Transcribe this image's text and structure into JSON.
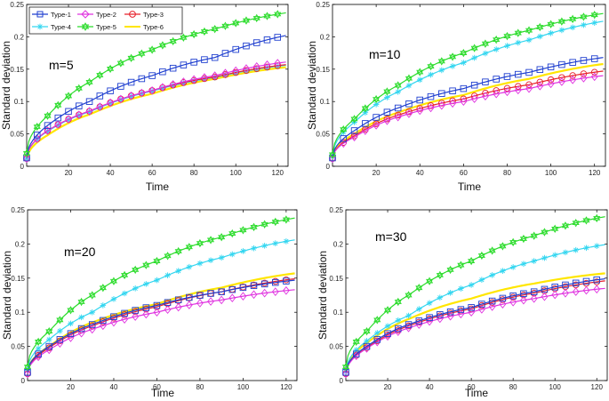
{
  "figure": {
    "ylabel": "Standard deviation",
    "xlabel": "Time"
  },
  "legend": {
    "entries": [
      {
        "name": "Type-1",
        "color": "#1f3fcf",
        "marker": "square"
      },
      {
        "name": "Type-2",
        "color": "#e033e0",
        "marker": "diamond"
      },
      {
        "name": "Type-3",
        "color": "#e8202a",
        "marker": "circle"
      },
      {
        "name": "Type-4",
        "color": "#33d6f0",
        "marker": "star"
      },
      {
        "name": "Type-5",
        "color": "#2bdc2b",
        "marker": "hexagram"
      },
      {
        "name": "Type-6",
        "color": "#ffe600",
        "marker": "none"
      }
    ]
  },
  "chart_data": [
    {
      "type": "line",
      "annotation": "m=5",
      "xlabel": "Time",
      "ylabel": "Standard deviation",
      "xlim": [
        0,
        125
      ],
      "ylim": [
        0,
        0.25
      ],
      "xticks": [
        "20",
        "40",
        "60",
        "80",
        "100",
        "120"
      ],
      "yticks": [
        "0",
        "0.05",
        "0.1",
        "0.15",
        "0.2",
        "0.25"
      ],
      "series": [
        {
          "name": "Type-1",
          "values_at_x": [
            [
              0,
              0.013
            ],
            [
              10,
              0.063
            ],
            [
              30,
              0.1
            ],
            [
              60,
              0.14
            ],
            [
              90,
              0.168
            ],
            [
              124,
              0.202
            ]
          ]
        },
        {
          "name": "Type-2",
          "values_at_x": [
            [
              0,
              0.012
            ],
            [
              10,
              0.055
            ],
            [
              30,
              0.085
            ],
            [
              60,
              0.117
            ],
            [
              90,
              0.14
            ],
            [
              124,
              0.161
            ]
          ]
        },
        {
          "name": "Type-3",
          "values_at_x": [
            [
              0,
              0.012
            ],
            [
              10,
              0.055
            ],
            [
              30,
              0.085
            ],
            [
              60,
              0.117
            ],
            [
              90,
              0.138
            ],
            [
              124,
              0.157
            ]
          ]
        },
        {
          "name": "Type-4",
          "values_at_x": [
            [
              0,
              0.012
            ],
            [
              10,
              0.054
            ],
            [
              30,
              0.084
            ],
            [
              60,
              0.116
            ],
            [
              90,
              0.137
            ],
            [
              124,
              0.156
            ]
          ]
        },
        {
          "name": "Type-5",
          "values_at_x": [
            [
              0,
              0.02
            ],
            [
              10,
              0.078
            ],
            [
              30,
              0.13
            ],
            [
              60,
              0.18
            ],
            [
              90,
              0.212
            ],
            [
              124,
              0.237
            ]
          ]
        },
        {
          "name": "Type-6",
          "values_at_x": [
            [
              0,
              0.01
            ],
            [
              10,
              0.048
            ],
            [
              30,
              0.08
            ],
            [
              60,
              0.112
            ],
            [
              90,
              0.135
            ],
            [
              124,
              0.153
            ]
          ]
        }
      ]
    },
    {
      "type": "line",
      "annotation": "m=10",
      "xlabel": "Time",
      "ylabel": "Standard deviation",
      "xlim": [
        0,
        125
      ],
      "ylim": [
        0,
        0.25
      ],
      "xticks": [
        "20",
        "40",
        "60",
        "80",
        "100",
        "120"
      ],
      "yticks": [
        "0",
        "0.05",
        "0.1",
        "0.15",
        "0.2",
        "0.25"
      ],
      "series": [
        {
          "name": "Type-1",
          "values_at_x": [
            [
              0,
              0.013
            ],
            [
              10,
              0.055
            ],
            [
              30,
              0.09
            ],
            [
              60,
              0.12
            ],
            [
              90,
              0.145
            ],
            [
              124,
              0.168
            ]
          ]
        },
        {
          "name": "Type-2",
          "values_at_x": [
            [
              0,
              0.012
            ],
            [
              10,
              0.045
            ],
            [
              30,
              0.076
            ],
            [
              60,
              0.1
            ],
            [
              90,
              0.12
            ],
            [
              124,
              0.14
            ]
          ]
        },
        {
          "name": "Type-3",
          "values_at_x": [
            [
              0,
              0.012
            ],
            [
              10,
              0.047
            ],
            [
              30,
              0.079
            ],
            [
              60,
              0.104
            ],
            [
              90,
              0.126
            ],
            [
              124,
              0.147
            ]
          ]
        },
        {
          "name": "Type-4",
          "values_at_x": [
            [
              0,
              0.015
            ],
            [
              10,
              0.068
            ],
            [
              30,
              0.115
            ],
            [
              60,
              0.16
            ],
            [
              90,
              0.195
            ],
            [
              124,
              0.224
            ]
          ]
        },
        {
          "name": "Type-5",
          "values_at_x": [
            [
              0,
              0.018
            ],
            [
              10,
              0.073
            ],
            [
              30,
              0.125
            ],
            [
              60,
              0.175
            ],
            [
              90,
              0.21
            ],
            [
              124,
              0.236
            ]
          ]
        },
        {
          "name": "Type-6",
          "values_at_x": [
            [
              0,
              0.012
            ],
            [
              10,
              0.05
            ],
            [
              30,
              0.083
            ],
            [
              60,
              0.11
            ],
            [
              90,
              0.135
            ],
            [
              124,
              0.158
            ]
          ]
        }
      ]
    },
    {
      "type": "line",
      "annotation": "m=20",
      "xlabel": "Time",
      "ylabel": "Standard deviation",
      "xlim": [
        0,
        125
      ],
      "ylim": [
        0,
        0.25
      ],
      "xticks": [
        "20",
        "40",
        "60",
        "80",
        "100",
        "120"
      ],
      "yticks": [
        "0",
        "0.05",
        "0.1",
        "0.15",
        "0.2",
        "0.25"
      ],
      "series": [
        {
          "name": "Type-1",
          "values_at_x": [
            [
              0,
              0.012
            ],
            [
              10,
              0.05
            ],
            [
              30,
              0.082
            ],
            [
              60,
              0.11
            ],
            [
              90,
              0.13
            ],
            [
              124,
              0.147
            ]
          ]
        },
        {
          "name": "Type-2",
          "values_at_x": [
            [
              0,
              0.01
            ],
            [
              10,
              0.045
            ],
            [
              30,
              0.075
            ],
            [
              60,
              0.1
            ],
            [
              90,
              0.118
            ],
            [
              124,
              0.133
            ]
          ]
        },
        {
          "name": "Type-3",
          "values_at_x": [
            [
              0,
              0.01
            ],
            [
              10,
              0.048
            ],
            [
              30,
              0.08
            ],
            [
              60,
              0.108
            ],
            [
              90,
              0.13
            ],
            [
              124,
              0.149
            ]
          ]
        },
        {
          "name": "Type-4",
          "values_at_x": [
            [
              0,
              0.015
            ],
            [
              10,
              0.06
            ],
            [
              30,
              0.1
            ],
            [
              60,
              0.147
            ],
            [
              90,
              0.18
            ],
            [
              124,
              0.206
            ]
          ]
        },
        {
          "name": "Type-5",
          "values_at_x": [
            [
              0,
              0.02
            ],
            [
              10,
              0.072
            ],
            [
              30,
              0.125
            ],
            [
              60,
              0.175
            ],
            [
              90,
              0.21
            ],
            [
              124,
              0.238
            ]
          ]
        },
        {
          "name": "Type-6",
          "values_at_x": [
            [
              0,
              0.012
            ],
            [
              10,
              0.05
            ],
            [
              30,
              0.085
            ],
            [
              60,
              0.112
            ],
            [
              90,
              0.136
            ],
            [
              124,
              0.157
            ]
          ]
        }
      ]
    },
    {
      "type": "line",
      "annotation": "m=30",
      "xlabel": "Time",
      "ylabel": "Standard deviation",
      "xlim": [
        0,
        125
      ],
      "ylim": [
        0,
        0.25
      ],
      "xticks": [
        "20",
        "40",
        "60",
        "80",
        "100",
        "120"
      ],
      "yticks": [
        "0",
        "0.05",
        "0.1",
        "0.15",
        "0.2",
        "0.25"
      ],
      "series": [
        {
          "name": "Type-1",
          "values_at_x": [
            [
              0,
              0.012
            ],
            [
              10,
              0.05
            ],
            [
              30,
              0.082
            ],
            [
              60,
              0.107
            ],
            [
              90,
              0.13
            ],
            [
              124,
              0.149
            ]
          ]
        },
        {
          "name": "Type-2",
          "values_at_x": [
            [
              0,
              0.01
            ],
            [
              10,
              0.047
            ],
            [
              30,
              0.077
            ],
            [
              60,
              0.1
            ],
            [
              90,
              0.12
            ],
            [
              124,
              0.135
            ]
          ]
        },
        {
          "name": "Type-3",
          "values_at_x": [
            [
              0,
              0.01
            ],
            [
              10,
              0.048
            ],
            [
              30,
              0.08
            ],
            [
              60,
              0.105
            ],
            [
              90,
              0.128
            ],
            [
              124,
              0.146
            ]
          ]
        },
        {
          "name": "Type-4",
          "values_at_x": [
            [
              0,
              0.013
            ],
            [
              10,
              0.058
            ],
            [
              30,
              0.095
            ],
            [
              60,
              0.14
            ],
            [
              90,
              0.175
            ],
            [
              124,
              0.199
            ]
          ]
        },
        {
          "name": "Type-5",
          "values_at_x": [
            [
              0,
              0.02
            ],
            [
              10,
              0.072
            ],
            [
              30,
              0.125
            ],
            [
              60,
              0.175
            ],
            [
              90,
              0.212
            ],
            [
              124,
              0.24
            ]
          ]
        },
        {
          "name": "Type-6",
          "values_at_x": [
            [
              0,
              0.012
            ],
            [
              10,
              0.055
            ],
            [
              30,
              0.09
            ],
            [
              60,
              0.12
            ],
            [
              90,
              0.142
            ],
            [
              124,
              0.157
            ]
          ]
        }
      ]
    }
  ]
}
